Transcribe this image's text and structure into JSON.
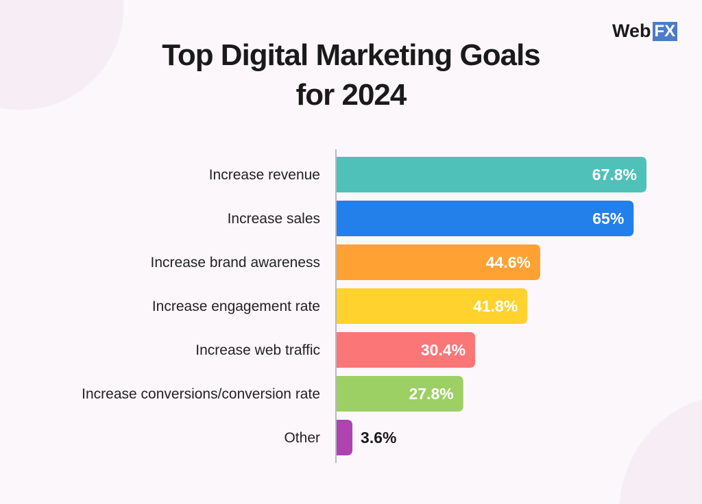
{
  "logo": {
    "text_web": "Web",
    "text_fx": "FX"
  },
  "chart_data": {
    "type": "bar",
    "orientation": "horizontal",
    "title": "Top Digital Marketing Goals for 2024",
    "title_lines": [
      "Top Digital Marketing Goals",
      "for 2024"
    ],
    "categories": [
      "Increase revenue",
      "Increase sales",
      "Increase brand awareness",
      "Increase engagement rate",
      "Increase web traffic",
      "Increase conversions/conversion rate",
      "Other"
    ],
    "values": [
      67.8,
      65,
      44.6,
      41.8,
      30.4,
      27.8,
      3.6
    ],
    "labels": [
      "67.8%",
      "65%",
      "44.6%",
      "41.8%",
      "30.4%",
      "27.8%",
      "3.6%"
    ],
    "colors": [
      "#4fc1b9",
      "#237fea",
      "#ffa133",
      "#ffd22e",
      "#fb7677",
      "#9dd064",
      "#ad44b0"
    ],
    "unit": "%",
    "xlim": [
      0,
      70
    ],
    "grid": false,
    "legend": "none"
  }
}
